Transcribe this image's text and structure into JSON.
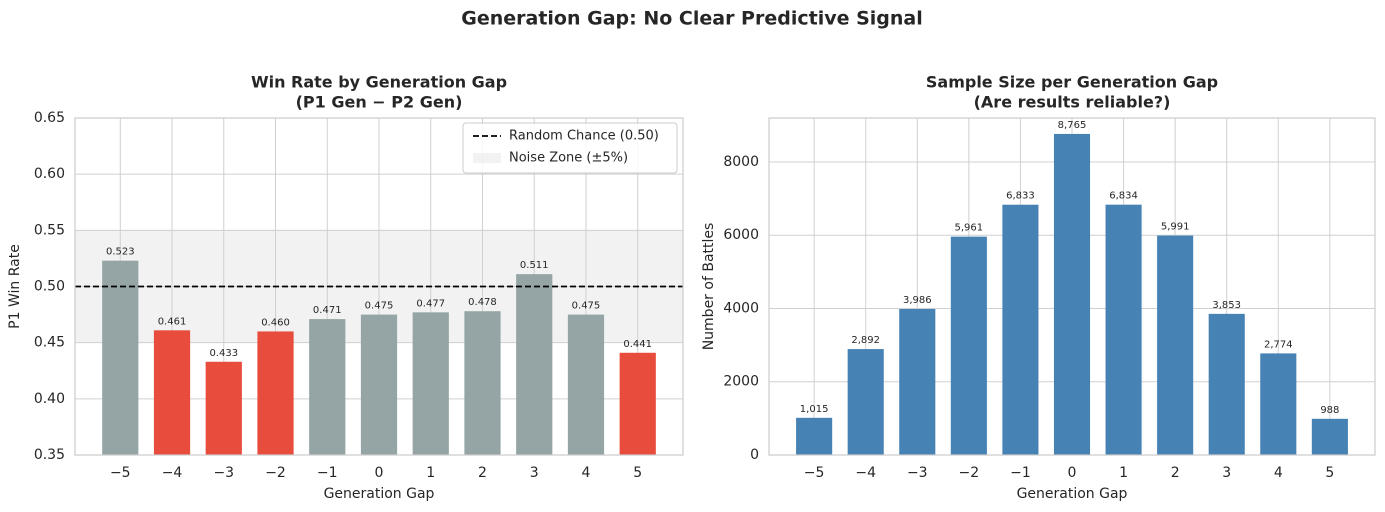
{
  "title": "Generation Gap: No Clear Predictive Signal",
  "chart_data": [
    {
      "type": "bar",
      "title": [
        "Win Rate by Generation Gap",
        "(P1 Gen − P2 Gen)"
      ],
      "x_label": "Generation Gap",
      "y_label": "P1 Win Rate",
      "categories": [
        "−5",
        "−4",
        "−3",
        "−2",
        "−1",
        "0",
        "1",
        "2",
        "3",
        "4",
        "5"
      ],
      "values": [
        0.523,
        0.461,
        0.433,
        0.46,
        0.471,
        0.475,
        0.477,
        0.478,
        0.511,
        0.475,
        0.441
      ],
      "value_labels": [
        "0.523",
        "0.461",
        "0.433",
        "0.460",
        "0.471",
        "0.475",
        "0.477",
        "0.478",
        "0.511",
        "0.475",
        "0.441"
      ],
      "colors": [
        "#95a5a6",
        "#e74c3c",
        "#e74c3c",
        "#e74c3c",
        "#95a5a6",
        "#95a5a6",
        "#95a5a6",
        "#95a5a6",
        "#95a5a6",
        "#95a5a6",
        "#e74c3c"
      ],
      "ylim": [
        0.35,
        0.65
      ],
      "yticks": [
        0.35,
        {
          "value": 0.4,
          "label": "0.40"
        },
        0.45,
        {
          "value": 0.5,
          "label": "0.50"
        },
        0.55,
        {
          "value": 0.6,
          "label": "0.60"
        },
        0.65
      ],
      "grid": true,
      "reference_line": {
        "value": 0.5,
        "label": "Random Chance (0.50)",
        "color": "#000000"
      },
      "band": {
        "range": [
          0.45,
          0.55
        ],
        "label": "Noise Zone (±5%)",
        "color": "#e8e8e8"
      },
      "legend": "upper right"
    },
    {
      "type": "bar",
      "title": [
        "Sample Size per Generation Gap",
        "(Are results reliable?)"
      ],
      "x_label": "Generation Gap",
      "y_label": "Number of Battles",
      "categories": [
        "−5",
        "−4",
        "−3",
        "−2",
        "−1",
        "0",
        "1",
        "2",
        "3",
        "4",
        "5"
      ],
      "values": [
        1015,
        2892,
        3986,
        5961,
        6833,
        8765,
        6834,
        5991,
        3853,
        2774,
        988
      ],
      "value_labels": [
        "1,015",
        "2,892",
        "3,986",
        "5,961",
        "6,833",
        "8,765",
        "6,834",
        "5,991",
        "3,853",
        "2,774",
        "988"
      ],
      "color": "#4682b4",
      "ylim": [
        0,
        9200
      ],
      "yticks": [
        0,
        2000,
        4000,
        6000,
        8000
      ],
      "grid": true
    }
  ]
}
